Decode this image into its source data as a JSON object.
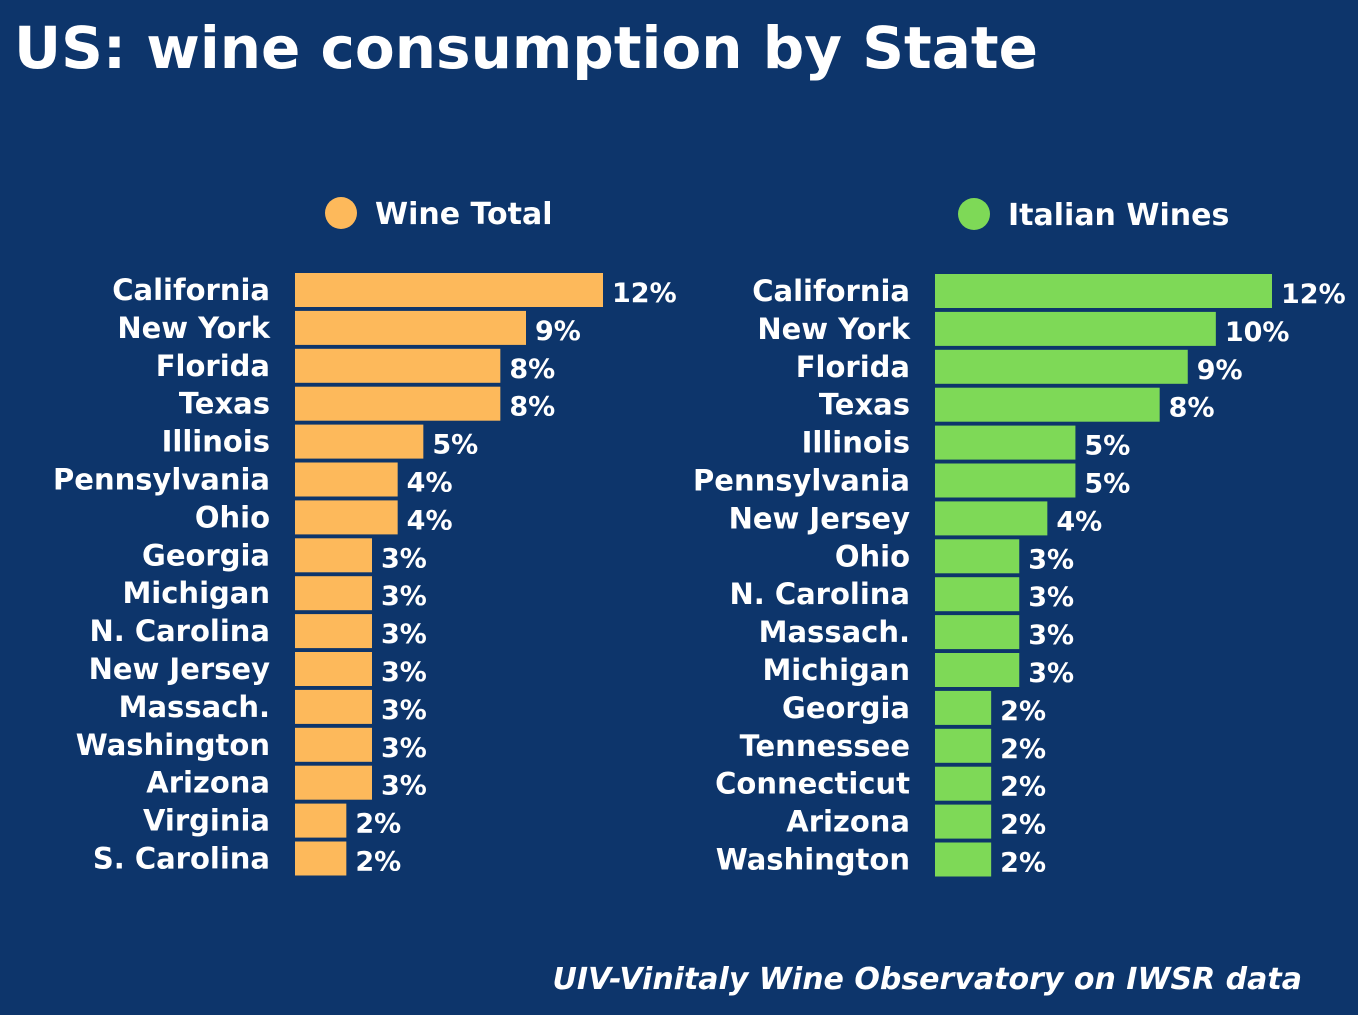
{
  "title": "US: wine consumption by State",
  "source": "UIV-Vinitaly Wine Observatory on IWSR data",
  "chart_data": [
    {
      "type": "bar",
      "orientation": "horizontal",
      "legend": "Wine Total",
      "color": "#fdb95b",
      "categories": [
        "California",
        "New York",
        "Florida",
        "Texas",
        "Illinois",
        "Pennsylvania",
        "Ohio",
        "Georgia",
        "Michigan",
        "N. Carolina",
        "New Jersey",
        "Massach.",
        "Washington",
        "Arizona",
        "Virginia",
        "S. Carolina"
      ],
      "values": [
        12,
        9,
        8,
        8,
        5,
        4,
        4,
        3,
        3,
        3,
        3,
        3,
        3,
        3,
        2,
        2
      ],
      "value_labels": [
        "12%",
        "9%",
        "8%",
        "8%",
        "5%",
        "4%",
        "4%",
        "3%",
        "3%",
        "3%",
        "3%",
        "3%",
        "3%",
        "3%",
        "2%",
        "2%"
      ],
      "xlim": [
        0,
        12
      ],
      "grid": false
    },
    {
      "type": "bar",
      "orientation": "horizontal",
      "legend": "Italian Wines",
      "color": "#7ed957",
      "categories": [
        "California",
        "New York",
        "Florida",
        "Texas",
        "Illinois",
        "Pennsylvania",
        "New Jersey",
        "Ohio",
        "N. Carolina",
        "Massach.",
        "Michigan",
        "Georgia",
        "Tennessee",
        "Connecticut",
        "Arizona",
        "Washington"
      ],
      "values": [
        12,
        10,
        9,
        8,
        5,
        5,
        4,
        3,
        3,
        3,
        3,
        2,
        2,
        2,
        2,
        2
      ],
      "value_labels": [
        "12%",
        "10%",
        "9%",
        "8%",
        "5%",
        "5%",
        "4%",
        "3%",
        "3%",
        "3%",
        "3%",
        "2%",
        "2%",
        "2%",
        "2%",
        "2%"
      ],
      "xlim": [
        0,
        12
      ],
      "grid": false
    }
  ]
}
